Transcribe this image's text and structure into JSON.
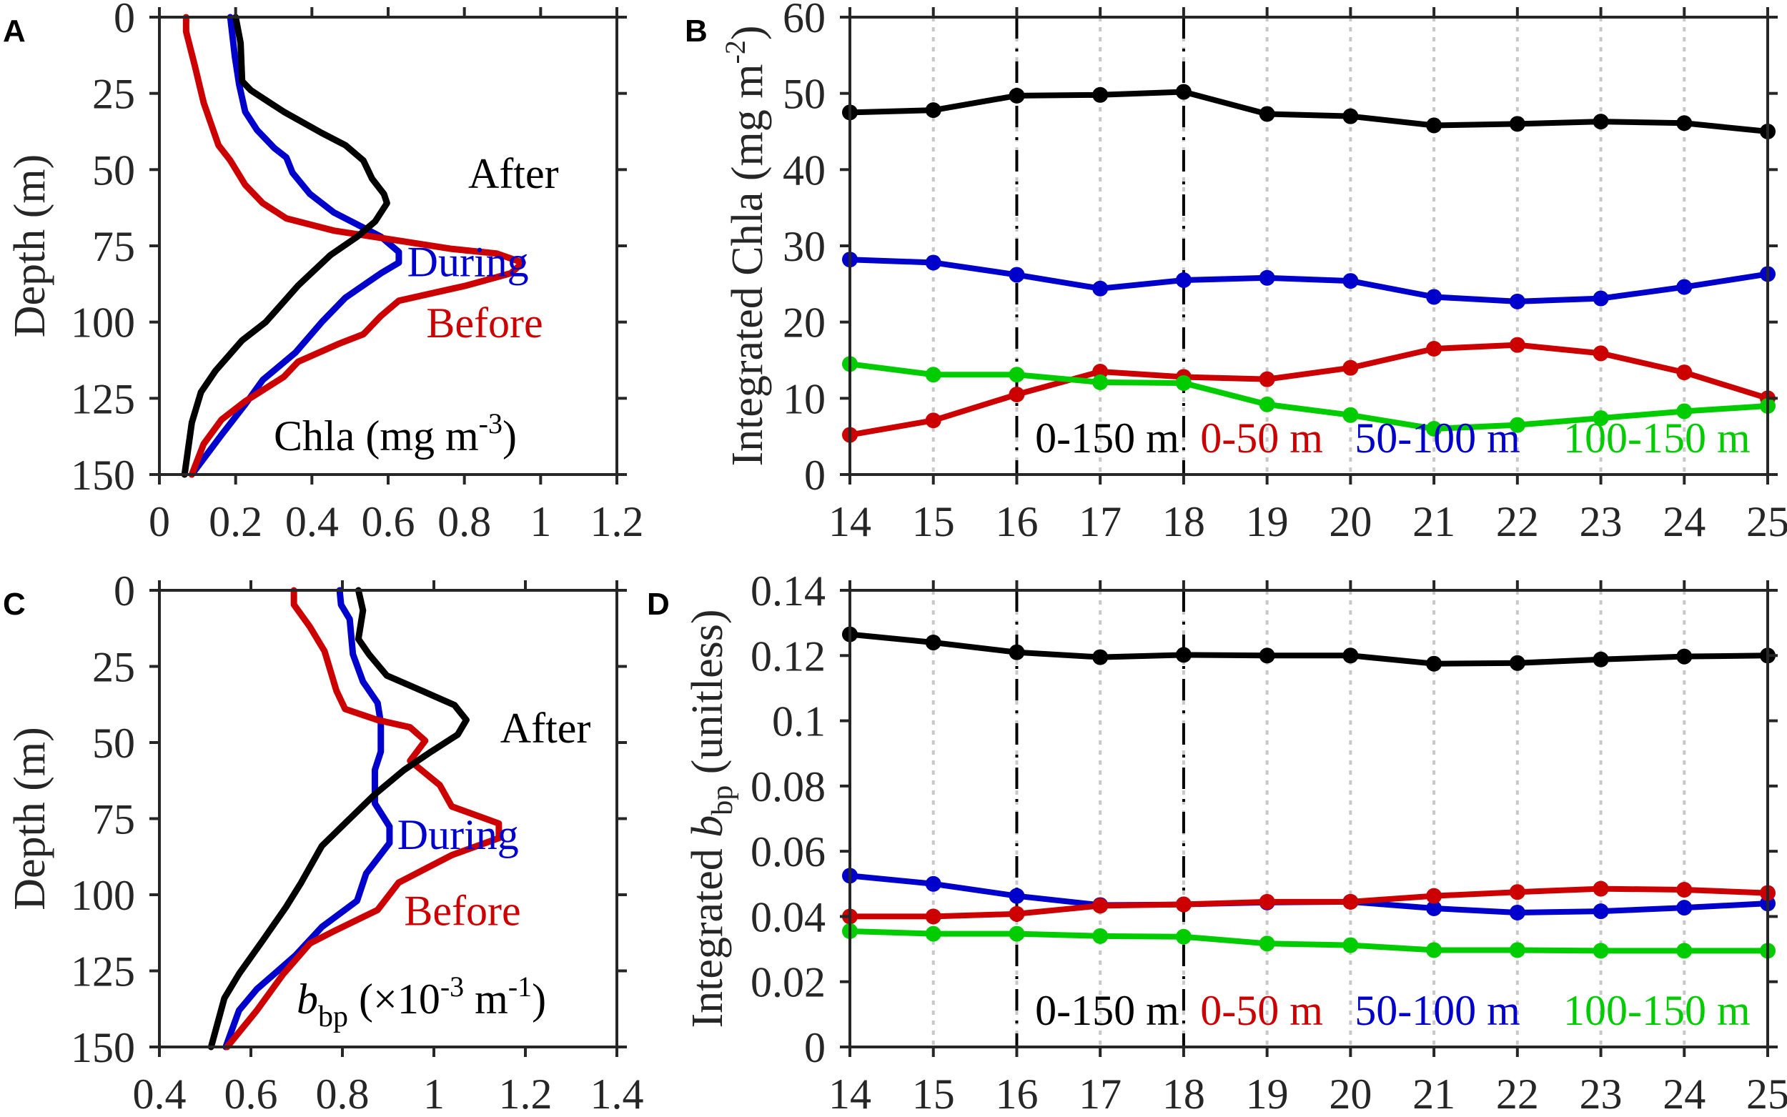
{
  "chart_data": [
    {
      "id": "A",
      "type": "line",
      "panel_letter": "A",
      "orientation": "profile",
      "ylabel": "Depth (m)",
      "xlim": [
        0,
        1.2
      ],
      "ylim": [
        0,
        150
      ],
      "y_reversed": true,
      "xticks": [
        0,
        0.2,
        0.4,
        0.6,
        0.8,
        1,
        1.2
      ],
      "xtick_labels": [
        "0",
        "0.2",
        "0.4",
        "0.6",
        "0.8",
        "1",
        "1.2"
      ],
      "yticks": [
        0,
        25,
        50,
        75,
        100,
        125,
        150
      ],
      "ytick_labels": [
        "0",
        "25",
        "50",
        "75",
        "100",
        "125",
        "150"
      ],
      "quantity_label": {
        "main": "Chla (mg m",
        "sup": "-3",
        "end": ")"
      },
      "series": [
        {
          "name": "During",
          "color": "#0000cc",
          "points": [
            [
              0.186,
              0
            ],
            [
              0.198,
              13
            ],
            [
              0.209,
              22
            ],
            [
              0.225,
              31
            ],
            [
              0.256,
              37
            ],
            [
              0.302,
              43
            ],
            [
              0.333,
              46
            ],
            [
              0.349,
              51
            ],
            [
              0.395,
              58
            ],
            [
              0.457,
              64
            ],
            [
              0.519,
              68
            ],
            [
              0.581,
              72
            ],
            [
              0.628,
              77
            ],
            [
              0.628,
              80.5
            ],
            [
              0.581,
              84
            ],
            [
              0.488,
              92
            ],
            [
              0.426,
              100
            ],
            [
              0.357,
              110
            ],
            [
              0.271,
              119
            ],
            [
              0.225,
              127
            ],
            [
              0.163,
              137
            ],
            [
              0.085,
              150
            ]
          ]
        },
        {
          "name": "Before",
          "color": "#cc0000",
          "points": [
            [
              0.07,
              0
            ],
            [
              0.07,
              4.7
            ],
            [
              0.093,
              16
            ],
            [
              0.116,
              28
            ],
            [
              0.155,
              42
            ],
            [
              0.186,
              47
            ],
            [
              0.225,
              55
            ],
            [
              0.271,
              61
            ],
            [
              0.333,
              66
            ],
            [
              0.457,
              70
            ],
            [
              0.612,
              73
            ],
            [
              0.767,
              76
            ],
            [
              0.884,
              77.5
            ],
            [
              0.953,
              80.5
            ],
            [
              0.922,
              84
            ],
            [
              0.806,
              88
            ],
            [
              0.628,
              93
            ],
            [
              0.581,
              98
            ],
            [
              0.535,
              104
            ],
            [
              0.473,
              107
            ],
            [
              0.364,
              113
            ],
            [
              0.326,
              118
            ],
            [
              0.225,
              126
            ],
            [
              0.163,
              132
            ],
            [
              0.116,
              140
            ],
            [
              0.085,
              150
            ]
          ]
        },
        {
          "name": "After",
          "color": "#000000",
          "points": [
            [
              0.2,
              0
            ],
            [
              0.213,
              8.5
            ],
            [
              0.217,
              21
            ],
            [
              0.24,
              24
            ],
            [
              0.326,
              31
            ],
            [
              0.426,
              38
            ],
            [
              0.488,
              42
            ],
            [
              0.535,
              47
            ],
            [
              0.558,
              53
            ],
            [
              0.589,
              58
            ],
            [
              0.597,
              61
            ],
            [
              0.566,
              67
            ],
            [
              0.519,
              72
            ],
            [
              0.449,
              78
            ],
            [
              0.364,
              88
            ],
            [
              0.279,
              100
            ],
            [
              0.217,
              106
            ],
            [
              0.147,
              116
            ],
            [
              0.109,
              123
            ],
            [
              0.085,
              133
            ],
            [
              0.066,
              150
            ]
          ]
        }
      ],
      "annotations": [
        {
          "text": "After",
          "color": "#000000"
        },
        {
          "text": "During",
          "color": "#0000cc"
        },
        {
          "text": "Before",
          "color": "#cc0000"
        }
      ]
    },
    {
      "id": "B",
      "type": "line",
      "panel_letter": "B",
      "orientation": "timeseries",
      "ylabel": {
        "main": "Integrated Chla (mg m",
        "sup": "-2",
        "end": ")"
      },
      "xlim": [
        14,
        25
      ],
      "ylim": [
        0,
        60
      ],
      "x": [
        14,
        15,
        16,
        17,
        18,
        19,
        20,
        21,
        22,
        23,
        24,
        25
      ],
      "xtick_labels": [
        "14",
        "15",
        "16",
        "17",
        "18",
        "19",
        "20",
        "21",
        "22",
        "23",
        "24",
        "25"
      ],
      "yticks": [
        0,
        10,
        20,
        30,
        40,
        50,
        60
      ],
      "ytick_labels": [
        "0",
        "10",
        "20",
        "30",
        "40",
        "50",
        "60"
      ],
      "grid_x": "dotted",
      "event_lines_x": [
        16,
        18
      ],
      "series": [
        {
          "name": "0-150 m",
          "color": "#000000",
          "values": [
            47.5,
            47.8,
            49.7,
            49.8,
            50.2,
            47.3,
            47.0,
            45.8,
            46.0,
            46.3,
            46.1,
            45.0
          ]
        },
        {
          "name": "50-100 m",
          "color": "#0000cc",
          "values": [
            28.2,
            27.8,
            26.2,
            24.4,
            25.5,
            25.8,
            25.4,
            23.3,
            22.7,
            23.1,
            24.6,
            26.3
          ]
        },
        {
          "name": "0-50 m",
          "color": "#cc0000",
          "values": [
            5.2,
            7.1,
            10.5,
            13.5,
            12.8,
            12.5,
            14.0,
            16.5,
            17.0,
            15.9,
            13.4,
            10.0
          ]
        },
        {
          "name": "100-150 m",
          "color": "#00cc00",
          "values": [
            14.5,
            13.1,
            13.1,
            12.1,
            12.0,
            9.2,
            7.8,
            6.0,
            6.5,
            7.4,
            8.3,
            9.0
          ]
        }
      ],
      "legend": [
        {
          "text": "0-150 m",
          "color": "#000000"
        },
        {
          "text": "0-50 m",
          "color": "#cc0000"
        },
        {
          "text": "50-100 m",
          "color": "#0000cc"
        },
        {
          "text": "100-150 m",
          "color": "#00cc00"
        }
      ],
      "legend_placement": "bottom, inside"
    },
    {
      "id": "C",
      "type": "line",
      "panel_letter": "C",
      "orientation": "profile",
      "ylabel": "Depth (m)",
      "xlim": [
        0.4,
        1.4
      ],
      "ylim": [
        0,
        150
      ],
      "y_reversed": true,
      "xticks": [
        0.4,
        0.6,
        0.8,
        1,
        1.2,
        1.4
      ],
      "xtick_labels": [
        "0.4",
        "0.6",
        "0.8",
        "1",
        "1.2",
        "1.4"
      ],
      "yticks": [
        0,
        25,
        50,
        75,
        100,
        125,
        150
      ],
      "ytick_labels": [
        "0",
        "25",
        "50",
        "75",
        "100",
        "125",
        "150"
      ],
      "quantity_label": {
        "italic": "b",
        "sub": "bp",
        "main": " (×10",
        "sup": "-3",
        "mid": " m",
        "sup2": "-1",
        "end": ")"
      },
      "series": [
        {
          "name": "During",
          "color": "#0000cc",
          "points": [
            [
              0.794,
              0
            ],
            [
              0.797,
              4.7
            ],
            [
              0.816,
              9.5
            ],
            [
              0.823,
              21
            ],
            [
              0.845,
              30
            ],
            [
              0.877,
              37
            ],
            [
              0.884,
              43.5
            ],
            [
              0.884,
              53
            ],
            [
              0.871,
              59
            ],
            [
              0.871,
              70
            ],
            [
              0.903,
              77.6
            ],
            [
              0.903,
              83
            ],
            [
              0.852,
              93
            ],
            [
              0.832,
              102
            ],
            [
              0.755,
              110.6
            ],
            [
              0.697,
              120
            ],
            [
              0.613,
              131
            ],
            [
              0.574,
              138
            ],
            [
              0.545,
              150
            ]
          ]
        },
        {
          "name": "Before",
          "color": "#cc0000",
          "points": [
            [
              0.694,
              0
            ],
            [
              0.694,
              4.7
            ],
            [
              0.729,
              12
            ],
            [
              0.761,
              20
            ],
            [
              0.787,
              33
            ],
            [
              0.806,
              39
            ],
            [
              0.877,
              42.6
            ],
            [
              0.948,
              45
            ],
            [
              0.981,
              49.4
            ],
            [
              0.948,
              56
            ],
            [
              1.013,
              64
            ],
            [
              1.039,
              71
            ],
            [
              1.142,
              76.6
            ],
            [
              1.142,
              81.4
            ],
            [
              1.039,
              87
            ],
            [
              0.923,
              96
            ],
            [
              0.877,
              105
            ],
            [
              0.781,
              112
            ],
            [
              0.729,
              116
            ],
            [
              0.671,
              126
            ],
            [
              0.613,
              138
            ],
            [
              0.548,
              150
            ]
          ]
        },
        {
          "name": "After",
          "color": "#000000",
          "points": [
            [
              0.835,
              0
            ],
            [
              0.845,
              6.6
            ],
            [
              0.835,
              16
            ],
            [
              0.858,
              21
            ],
            [
              0.897,
              28
            ],
            [
              0.974,
              33
            ],
            [
              1.045,
              37.7
            ],
            [
              1.071,
              42.6
            ],
            [
              1.052,
              47.4
            ],
            [
              0.994,
              53
            ],
            [
              0.935,
              59
            ],
            [
              0.871,
              67
            ],
            [
              0.819,
              74.6
            ],
            [
              0.755,
              84
            ],
            [
              0.71,
              96
            ],
            [
              0.677,
              104
            ],
            [
              0.626,
              115
            ],
            [
              0.574,
              126
            ],
            [
              0.542,
              134
            ],
            [
              0.513,
              150
            ]
          ]
        }
      ],
      "annotations": [
        {
          "text": "After",
          "color": "#000000"
        },
        {
          "text": "During",
          "color": "#0000cc"
        },
        {
          "text": "Before",
          "color": "#cc0000"
        }
      ]
    },
    {
      "id": "D",
      "type": "line",
      "panel_letter": "D",
      "orientation": "timeseries",
      "ylabel": {
        "main": "Integrated ",
        "italic": "b",
        "sub": "bp",
        "end": " (unitless)"
      },
      "xlim": [
        14,
        25
      ],
      "ylim": [
        0,
        0.14
      ],
      "x": [
        14,
        15,
        16,
        17,
        18,
        19,
        20,
        21,
        22,
        23,
        24,
        25
      ],
      "xtick_labels": [
        "14",
        "15",
        "16",
        "17",
        "18",
        "19",
        "20",
        "21",
        "22",
        "23",
        "24",
        "25"
      ],
      "yticks": [
        0,
        0.02,
        0.04,
        0.06,
        0.08,
        0.1,
        0.12,
        0.14
      ],
      "ytick_labels": [
        "0",
        "0.02",
        "0.04",
        "0.06",
        "0.08",
        "0.1",
        "0.12",
        "0.14"
      ],
      "grid_x": "dotted",
      "event_lines_x": [
        16,
        18
      ],
      "series": [
        {
          "name": "0-150 m",
          "color": "#000000",
          "values": [
            0.1265,
            0.124,
            0.121,
            0.1195,
            0.1202,
            0.12,
            0.12,
            0.1175,
            0.1177,
            0.1188,
            0.1197,
            0.12
          ]
        },
        {
          "name": "50-100 m",
          "color": "#0000cc",
          "values": [
            0.0525,
            0.05,
            0.0463,
            0.0435,
            0.0437,
            0.0443,
            0.0445,
            0.0425,
            0.0412,
            0.0416,
            0.0427,
            0.044
          ]
        },
        {
          "name": "0-50 m",
          "color": "#cc0000",
          "values": [
            0.04,
            0.04,
            0.0408,
            0.0433,
            0.0437,
            0.0445,
            0.0445,
            0.0463,
            0.0475,
            0.0485,
            0.0482,
            0.0472
          ]
        },
        {
          "name": "100-150 m",
          "color": "#00cc00",
          "values": [
            0.0355,
            0.0347,
            0.0347,
            0.034,
            0.0338,
            0.0317,
            0.0312,
            0.0297,
            0.0297,
            0.0295,
            0.0295,
            0.0295
          ]
        }
      ],
      "legend": [
        {
          "text": "0-150 m",
          "color": "#000000"
        },
        {
          "text": "0-50 m",
          "color": "#cc0000"
        },
        {
          "text": "50-100 m",
          "color": "#0000cc"
        },
        {
          "text": "100-150 m",
          "color": "#00cc00"
        }
      ],
      "legend_placement": "bottom, inside"
    }
  ]
}
